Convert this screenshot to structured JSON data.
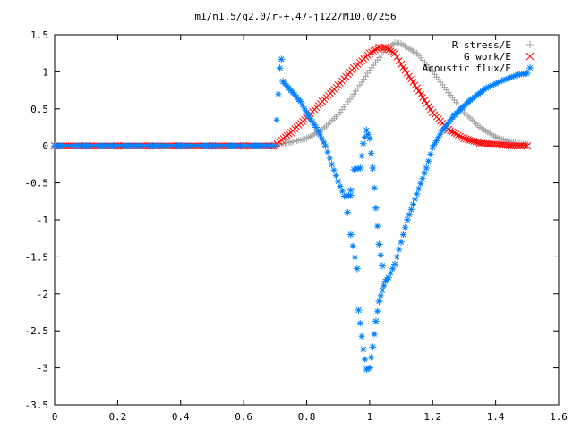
{
  "chart_data": {
    "type": "scatter",
    "title": "m1/n1.5/q2.0/r-+.47-j122/M10.0/256",
    "xlabel": "",
    "ylabel": "",
    "xlim": [
      0,
      1.6
    ],
    "ylim": [
      -3.5,
      1.5
    ],
    "xticks": [
      "0",
      "0.2",
      "0.4",
      "0.6",
      "0.8",
      "1",
      "1.2",
      "1.4",
      "1.6"
    ],
    "yticks": [
      "1.5",
      "1",
      "0.5",
      "0",
      "-0.5",
      "-1",
      "-1.5",
      "-2",
      "-2.5",
      "-3",
      "-3.5"
    ],
    "grid": false,
    "legend_position": "top-right",
    "series": [
      {
        "name": "R stress/E",
        "marker": "+",
        "color": "#a0a0a0",
        "points": [
          [
            0.0,
            0.0
          ],
          [
            0.1,
            0.0
          ],
          [
            0.2,
            0.0
          ],
          [
            0.3,
            0.0
          ],
          [
            0.4,
            0.0
          ],
          [
            0.5,
            0.0
          ],
          [
            0.6,
            0.0
          ],
          [
            0.7,
            0.0
          ],
          [
            0.72,
            0.03
          ],
          [
            0.75,
            0.05
          ],
          [
            0.8,
            0.1
          ],
          [
            0.85,
            0.22
          ],
          [
            0.9,
            0.42
          ],
          [
            0.95,
            0.7
          ],
          [
            1.0,
            1.02
          ],
          [
            1.05,
            1.3
          ],
          [
            1.08,
            1.39
          ],
          [
            1.1,
            1.38
          ],
          [
            1.15,
            1.25
          ],
          [
            1.2,
            1.0
          ],
          [
            1.25,
            0.72
          ],
          [
            1.3,
            0.45
          ],
          [
            1.35,
            0.25
          ],
          [
            1.4,
            0.12
          ],
          [
            1.45,
            0.05
          ],
          [
            1.5,
            0.02
          ]
        ]
      },
      {
        "name": "G work/E",
        "marker": "x",
        "color": "#ff0000",
        "points": [
          [
            0.0,
            0.0
          ],
          [
            0.1,
            0.0
          ],
          [
            0.2,
            0.0
          ],
          [
            0.3,
            0.0
          ],
          [
            0.4,
            0.0
          ],
          [
            0.5,
            0.0
          ],
          [
            0.6,
            0.0
          ],
          [
            0.7,
            0.0
          ],
          [
            0.72,
            0.08
          ],
          [
            0.75,
            0.18
          ],
          [
            0.8,
            0.38
          ],
          [
            0.85,
            0.6
          ],
          [
            0.9,
            0.82
          ],
          [
            0.95,
            1.05
          ],
          [
            1.0,
            1.25
          ],
          [
            1.03,
            1.33
          ],
          [
            1.05,
            1.33
          ],
          [
            1.08,
            1.25
          ],
          [
            1.1,
            1.1
          ],
          [
            1.15,
            0.78
          ],
          [
            1.2,
            0.45
          ],
          [
            1.25,
            0.22
          ],
          [
            1.3,
            0.1
          ],
          [
            1.35,
            0.04
          ],
          [
            1.4,
            0.02
          ],
          [
            1.45,
            0.0
          ],
          [
            1.5,
            0.0
          ]
        ]
      },
      {
        "name": "Acoustic flux/E",
        "marker": "*",
        "color": "#0080ff",
        "points": [
          [
            0.0,
            0.0
          ],
          [
            0.1,
            0.0
          ],
          [
            0.2,
            0.0
          ],
          [
            0.3,
            0.0
          ],
          [
            0.4,
            0.0
          ],
          [
            0.5,
            0.0
          ],
          [
            0.6,
            0.0
          ],
          [
            0.7,
            0.0
          ],
          [
            0.715,
            1.05
          ],
          [
            0.72,
            1.17
          ],
          [
            0.725,
            0.87
          ],
          [
            0.75,
            0.75
          ],
          [
            0.78,
            0.6
          ],
          [
            0.8,
            0.45
          ],
          [
            0.83,
            0.25
          ],
          [
            0.86,
            0.0
          ],
          [
            0.88,
            -0.25
          ],
          [
            0.9,
            -0.48
          ],
          [
            0.92,
            -0.68
          ],
          [
            0.94,
            -0.67
          ],
          [
            0.93,
            -0.9
          ],
          [
            0.94,
            -1.2
          ],
          [
            0.96,
            -1.66
          ],
          [
            0.965,
            -2.22
          ],
          [
            0.98,
            -2.75
          ],
          [
            0.99,
            -3.02
          ],
          [
            1.0,
            -3.0
          ],
          [
            1.01,
            -2.72
          ],
          [
            1.02,
            -2.37
          ],
          [
            1.03,
            -2.1
          ],
          [
            1.04,
            -1.95
          ],
          [
            1.05,
            -1.83
          ],
          [
            1.06,
            -1.78
          ],
          [
            1.08,
            -1.6
          ],
          [
            1.1,
            -1.3
          ],
          [
            1.12,
            -1.0
          ],
          [
            1.15,
            -0.65
          ],
          [
            1.18,
            -0.3
          ],
          [
            1.2,
            -0.02
          ],
          [
            1.23,
            0.2
          ],
          [
            1.27,
            0.42
          ],
          [
            1.32,
            0.62
          ],
          [
            1.37,
            0.78
          ],
          [
            1.42,
            0.88
          ],
          [
            1.47,
            0.96
          ],
          [
            1.5,
            0.98
          ],
          [
            0.94,
            -0.6
          ],
          [
            0.95,
            -0.32
          ],
          [
            0.97,
            -0.3
          ],
          [
            0.98,
            0.03
          ],
          [
            0.99,
            0.21
          ],
          [
            1.0,
            0.1
          ],
          [
            1.01,
            -0.3
          ],
          [
            1.02,
            -0.84
          ],
          [
            1.03,
            -1.33
          ],
          [
            1.04,
            -1.62
          ]
        ]
      }
    ]
  }
}
